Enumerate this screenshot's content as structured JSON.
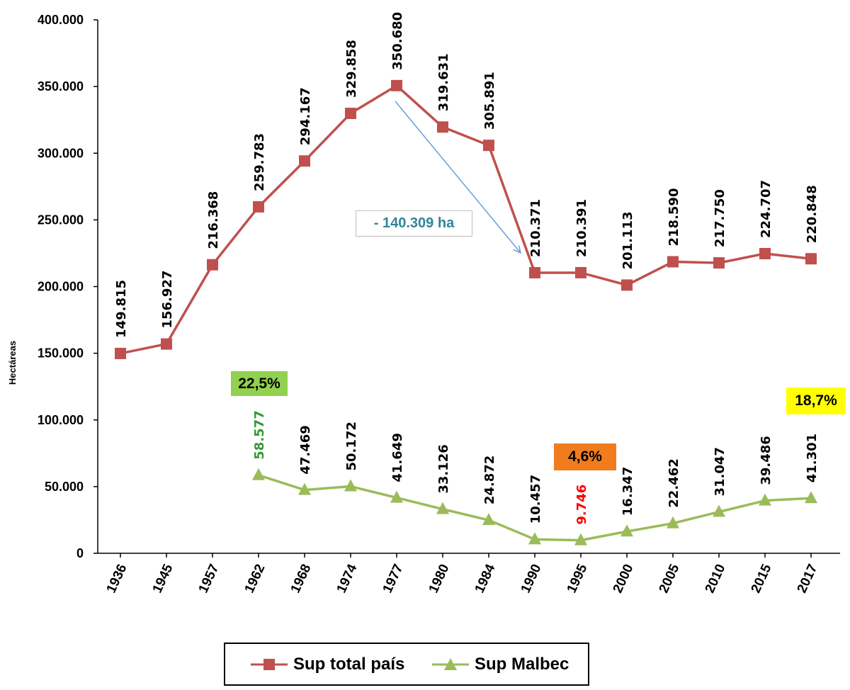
{
  "chart_data": {
    "type": "line",
    "categories": [
      "1936",
      "1945",
      "1957",
      "1962",
      "1968",
      "1974",
      "1977",
      "1980",
      "1984",
      "1990",
      "1995",
      "2000",
      "2005",
      "2010",
      "2015",
      "2017"
    ],
    "ylabel": "Hectáreas",
    "ylim": [
      0,
      400000
    ],
    "yticks": [
      0,
      50000,
      100000,
      150000,
      200000,
      250000,
      300000,
      350000,
      400000
    ],
    "ytick_labels": [
      "0",
      "50.000",
      "100.000",
      "150.000",
      "200.000",
      "250.000",
      "300.000",
      "350.000",
      "400.000"
    ],
    "grid": false,
    "legend_position": "bottom",
    "series": [
      {
        "name": "Sup total país",
        "color": "#c0504d",
        "marker": "square",
        "values": [
          149815,
          156927,
          216368,
          259783,
          294167,
          329858,
          350680,
          319631,
          305891,
          210371,
          210391,
          201113,
          218590,
          217750,
          224707,
          220848
        ],
        "labels": [
          "149.815",
          "156.927",
          "216.368",
          "259.783",
          "294.167",
          "329.858",
          "350.680",
          "319.631",
          "305.891",
          "210.371",
          "210.391",
          "201.113",
          "218.590",
          "217.750",
          "224.707",
          "220.848"
        ]
      },
      {
        "name": "Sup Malbec",
        "color": "#9bbb59",
        "marker": "triangle",
        "values": [
          null,
          null,
          null,
          58577,
          47469,
          50172,
          41649,
          33126,
          24872,
          10457,
          9746,
          16347,
          22462,
          31047,
          39486,
          41301
        ],
        "labels": [
          "",
          "",
          "",
          "58.577",
          "47.469",
          "50.172",
          "41.649",
          "33.126",
          "24.872",
          "10.457",
          "9.746",
          "16.347",
          "22.462",
          "31.047",
          "39.486",
          "41.301"
        ],
        "label_colors": {
          "3": "#339933",
          "10": "#ff0000"
        }
      }
    ],
    "annotations": {
      "drop": {
        "text": "- 140.309 ha",
        "color": "#31849b",
        "arrow_color": "#6a9fd8"
      },
      "pct_1962": {
        "text": "22,5%",
        "bg": "#92d050"
      },
      "pct_1995": {
        "text": "4,6%",
        "bg": "#f07c1e"
      },
      "pct_2017": {
        "text": "18,7%",
        "bg": "#ffff00"
      }
    }
  },
  "legend": {
    "total_label": "Sup total país",
    "malbec_label": "Sup Malbec"
  }
}
